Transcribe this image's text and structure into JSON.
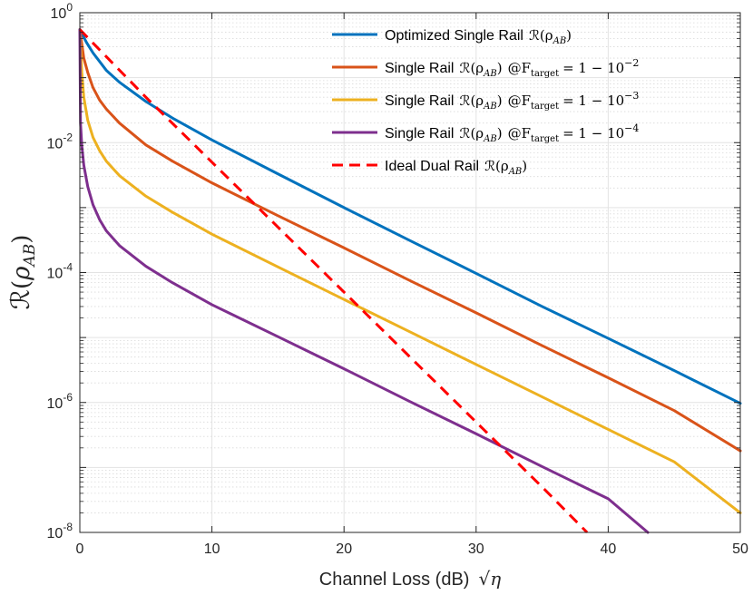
{
  "chart_data": {
    "type": "line",
    "x_scale": "linear",
    "y_scale": "log",
    "xlim": [
      0,
      50
    ],
    "ylim": [
      1e-08,
      1
    ],
    "x_ticks": [
      0,
      10,
      20,
      30,
      40,
      50
    ],
    "y_ticks": [
      {
        "value": 1,
        "base": "10",
        "exp": "0"
      },
      {
        "value": 0.01,
        "base": "10",
        "exp": "-2"
      },
      {
        "value": 0.0001,
        "base": "10",
        "exp": "-4"
      },
      {
        "value": 1e-06,
        "base": "10",
        "exp": "-6"
      },
      {
        "value": 1e-08,
        "base": "10",
        "exp": "-8"
      }
    ],
    "xlabel": "Channel Loss (dB)",
    "xlabel_math": "√η",
    "ylabel": "R(ρAB)",
    "ylabel_script": "ℛ",
    "ylabel_rho": "ρ",
    "ylabel_sub": "AB",
    "grid": true,
    "legend_position": "top-right",
    "series": [
      {
        "name": "Optimized Single Rail",
        "label_text": "Optimized Single Rail",
        "label_math": "ℛ(ρ",
        "label_math_sub": "AB",
        "label_math_close": ")",
        "target": "",
        "color": "#0072BD",
        "dash": "solid",
        "x": [
          0,
          0.5,
          1,
          2,
          3,
          5,
          7,
          10,
          15,
          20,
          25,
          30,
          35,
          40,
          45,
          50
        ],
        "y": [
          0.55,
          0.35,
          0.24,
          0.13,
          0.085,
          0.043,
          0.024,
          0.011,
          0.0033,
          0.001,
          0.00031,
          9.7e-05,
          3e-05,
          9.7e-06,
          3.1e-06,
          9.7e-07
        ]
      },
      {
        "name": "Single Rail @F_target = 1 - 10^-2",
        "label_text": "Single Rail",
        "label_math": "ℛ(ρ",
        "label_math_sub": "AB",
        "label_math_close": ")",
        "target": "@F",
        "target_sub": "target",
        "target_rest": "= 1 − 10",
        "target_exp": "−2",
        "color": "#D95319",
        "dash": "solid",
        "x": [
          0,
          0.3,
          0.6,
          1,
          1.5,
          2,
          3,
          5,
          7,
          10,
          15,
          20,
          25,
          30,
          35,
          40,
          45,
          50
        ],
        "y": [
          0.55,
          0.2,
          0.12,
          0.07,
          0.045,
          0.033,
          0.02,
          0.0092,
          0.0052,
          0.0024,
          0.00075,
          0.00024,
          7.5e-05,
          2.4e-05,
          7.5e-06,
          2.4e-06,
          7.5e-07,
          1.8e-07
        ]
      },
      {
        "name": "Single Rail @F_target = 1 - 10^-3",
        "label_text": "Single Rail",
        "label_math": "ℛ(ρ",
        "label_math_sub": "AB",
        "label_math_close": ")",
        "target": "@F",
        "target_sub": "target",
        "target_rest": "= 1 − 10",
        "target_exp": "−3",
        "color": "#EDB120",
        "dash": "solid",
        "x": [
          0,
          0.15,
          0.3,
          0.6,
          1,
          1.5,
          2,
          3,
          5,
          7,
          10,
          15,
          20,
          25,
          30,
          35,
          40,
          45,
          50
        ],
        "y": [
          0.55,
          0.12,
          0.05,
          0.022,
          0.012,
          0.0075,
          0.0052,
          0.0031,
          0.0015,
          0.00085,
          0.00039,
          0.000122,
          3.85e-05,
          1.22e-05,
          3.85e-06,
          1.22e-06,
          3.85e-07,
          1.22e-07,
          2e-08
        ]
      },
      {
        "name": "Single Rail @F_target = 1 - 10^-4",
        "label_text": "Single Rail",
        "label_math": "ℛ(ρ",
        "label_math_sub": "AB",
        "label_math_close": ")",
        "target": "@F",
        "target_sub": "target",
        "target_rest": "= 1 − 10",
        "target_exp": "−4",
        "color": "#7E2F8E",
        "dash": "solid",
        "x": [
          0,
          0.05,
          0.15,
          0.3,
          0.6,
          1,
          1.5,
          2,
          3,
          5,
          7,
          10,
          15,
          20,
          25,
          30,
          35,
          40,
          43
        ],
        "y": [
          0.55,
          0.02,
          0.009,
          0.0045,
          0.0021,
          0.0011,
          0.00065,
          0.00044,
          0.00026,
          0.000125,
          7e-05,
          3.2e-05,
          1.03e-05,
          3.3e-06,
          1.03e-06,
          3.3e-07,
          1.03e-07,
          3.3e-08,
          1e-08
        ]
      },
      {
        "name": "Ideal Dual Rail",
        "label_text": "Ideal Dual Rail",
        "label_math": "ℛ(ρ",
        "label_math_sub": "AB",
        "label_math_close": ")",
        "target": "",
        "color": "#FF0000",
        "dash": "dashed",
        "x": [
          0,
          5,
          10,
          15,
          20,
          25,
          30,
          35,
          38.4
        ],
        "y": [
          0.55,
          0.05,
          0.005,
          0.0005,
          5e-05,
          5e-06,
          5e-07,
          5e-08,
          1e-08
        ]
      }
    ]
  }
}
